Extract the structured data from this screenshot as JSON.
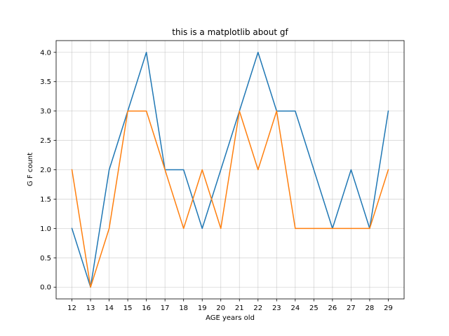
{
  "chart_data": {
    "type": "line",
    "title": "this is a matplotlib about gf",
    "xlabel": "AGE years old",
    "ylabel": "G F count",
    "x": [
      12,
      13,
      14,
      15,
      16,
      17,
      18,
      19,
      20,
      21,
      22,
      23,
      24,
      25,
      26,
      27,
      28,
      29
    ],
    "xticks": [
      "12",
      "13",
      "14",
      "15",
      "16",
      "17",
      "18",
      "19",
      "20",
      "21",
      "22",
      "23",
      "24",
      "25",
      "26",
      "27",
      "28",
      "29"
    ],
    "yticks": [
      "0.0",
      "0.5",
      "1.0",
      "1.5",
      "2.0",
      "2.5",
      "3.0",
      "3.5",
      "4.0"
    ],
    "ylim": [
      -0.2,
      4.2
    ],
    "grid": true,
    "series": [
      {
        "color": "#1f77b4",
        "values": [
          1,
          0,
          2,
          3,
          4,
          2,
          2,
          1,
          2,
          3,
          4,
          3,
          3,
          2,
          1,
          2,
          1,
          3
        ]
      },
      {
        "color": "#ff7f0e",
        "values": [
          2,
          0,
          1,
          3,
          3,
          2,
          1,
          2,
          1,
          3,
          2,
          3,
          1,
          1,
          1,
          1,
          1,
          2
        ]
      }
    ]
  }
}
